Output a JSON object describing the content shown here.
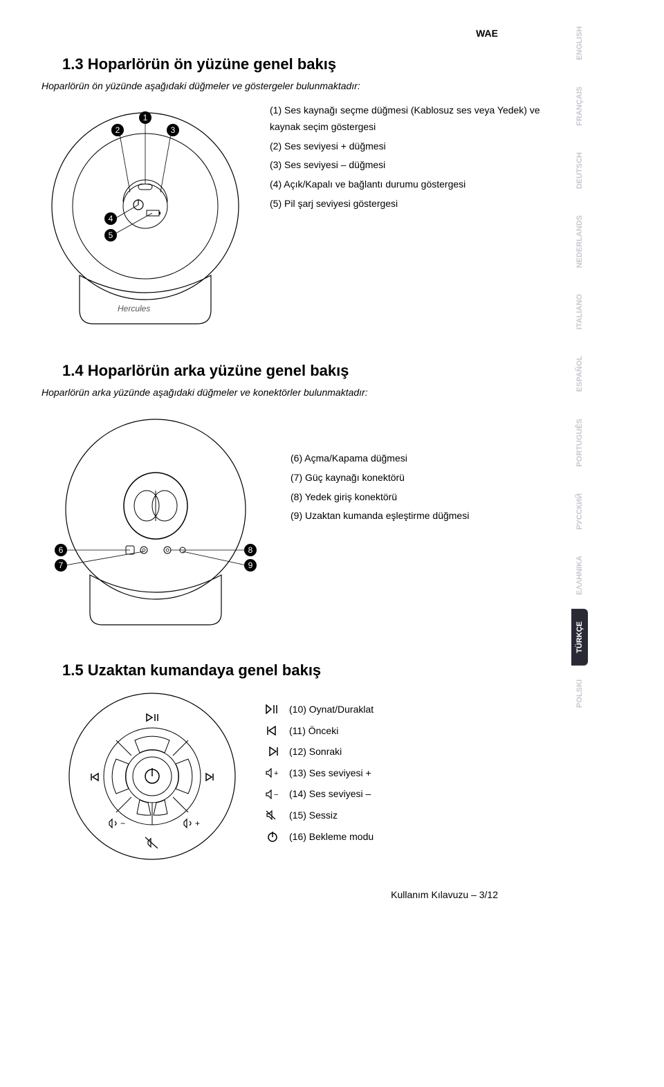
{
  "brand": "WAE",
  "languages": [
    "ENGLISH",
    "FRANÇAIS",
    "DEUTSCH",
    "NEDERLANDS",
    "ITALIANO",
    "ESPAÑOL",
    "PORTUGUÊS",
    "РУССКИЙ",
    "EΛΛHNIKA",
    "TÜRKÇE",
    "POLSKI"
  ],
  "active_language_index": 9,
  "section1": {
    "title": "1.3  Hoparlörün ön yüzüne genel bakış",
    "intro": "Hoparlörün ön yüzünde aşağıdaki düğmeler ve göstergeler bulunmaktadır:",
    "callouts": [
      "1",
      "2",
      "3",
      "4",
      "5"
    ],
    "legend": [
      "(1) Ses kaynağı seçme düğmesi (Kablosuz ses veya Yedek) ve kaynak seçim göstergesi",
      "(2) Ses seviyesi + düğmesi",
      "(3) Ses seviyesi – düğmesi",
      "(4) Açık/Kapalı ve bağlantı durumu göstergesi",
      "(5) Pil şarj seviyesi göstergesi"
    ],
    "logo_text": "Hercules"
  },
  "section2": {
    "title": "1.4  Hoparlörün arka yüzüne genel bakış",
    "intro": "Hoparlörün arka yüzünde aşağıdaki düğmeler ve konektörler bulunmaktadır:",
    "callouts": [
      "6",
      "7",
      "8",
      "9"
    ],
    "legend": [
      "(6) Açma/Kapama düğmesi",
      "(7) Güç kaynağı konektörü",
      "(8) Yedek giriş konektörü",
      "(9) Uzaktan kumanda eşleştirme düğmesi"
    ]
  },
  "section3": {
    "title": "1.5  Uzaktan kumandaya genel bakış",
    "legend": [
      "(10) Oynat/Duraklat",
      "(11) Önceki",
      "(12) Sonraki",
      "(13) Ses seviyesi +",
      "(14) Ses seviyesi –",
      "(15) Sessiz",
      "(16) Bekleme modu"
    ]
  },
  "footer": "Kullanım Kılavuzu – 3/12",
  "styles": {
    "body_bg": "#ffffff",
    "text_color": "#000000",
    "font_family": "Arial",
    "title_fontsize": 22,
    "body_fontsize": 14,
    "lang_inactive_color": "#c8c8d0",
    "lang_active_bg": "#2a2a35",
    "lang_active_color": "#ffffff",
    "diagram_stroke": "#000000",
    "diagram_stroke_width": 1.2,
    "callout_fill": "#000000",
    "callout_text": "#ffffff",
    "callout_radius": 9
  }
}
